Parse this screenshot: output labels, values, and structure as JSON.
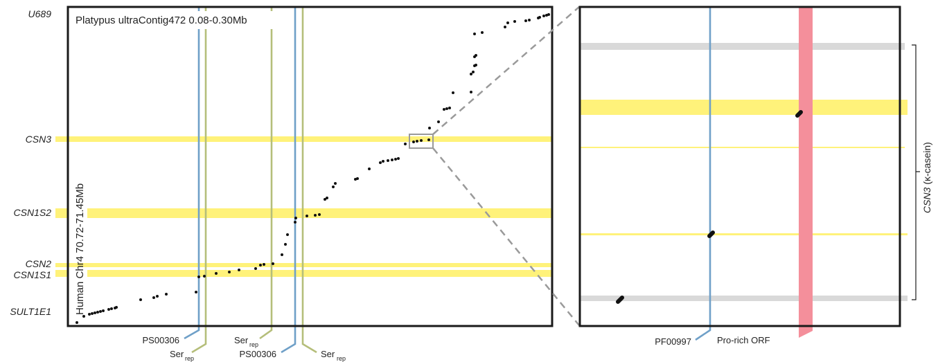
{
  "colors": {
    "gene_band": "#fff27a",
    "flank_band": "#d9d9d9",
    "motif_blue": "#6fa0c8",
    "motif_olive": "#b5be7a",
    "pro_rich": "#f48f9b",
    "dots": "#111111",
    "frame": "#1a1a1a",
    "zoom_box": "#9a9a9a"
  },
  "main_panel": {
    "title": "Platypus ultraContig472 0.08-0.30Mb",
    "y_axis_label": "Human Chr4 70.72-71.45Mb",
    "gene_labels": [
      "U689",
      "CSN3",
      "CSN1S2",
      "CSN2",
      "CSN1S1",
      "SULT1E1"
    ],
    "motif_labels": {
      "ps00306_1": "PS00306",
      "ser_1": "Ser",
      "ser_1_sub": "rep",
      "ser_2": "Ser",
      "ser_2_sub": "rep",
      "ps00306_2": "PS00306",
      "ser_3": "Ser",
      "ser_3_sub": "rep"
    }
  },
  "zoom_panel": {
    "side_label_gene": "CSN3",
    "side_label_desc": "(κ-casein)",
    "motif_labels": {
      "pfam": "PF00997",
      "orf": "Pro-rich ORF"
    }
  }
}
